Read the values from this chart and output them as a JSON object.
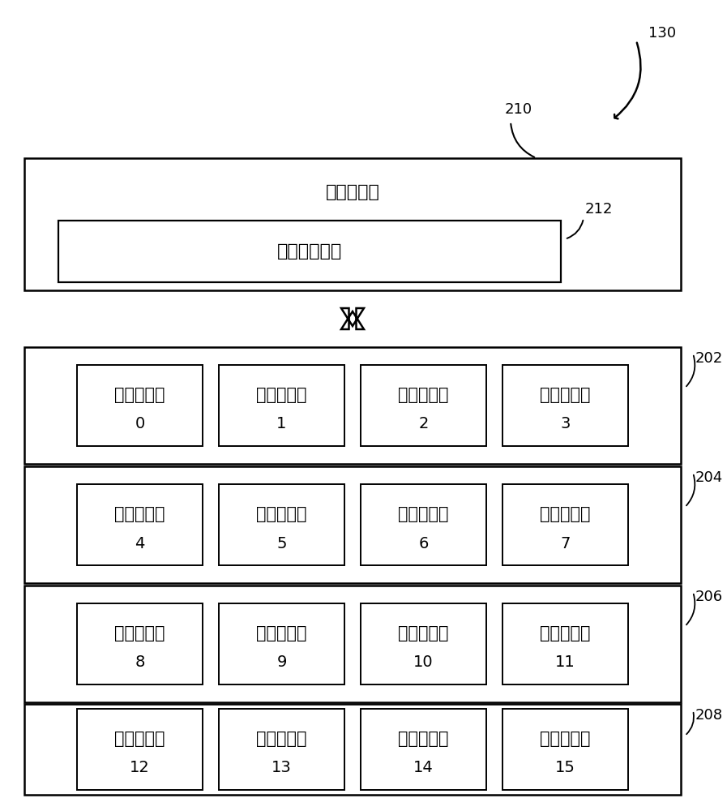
{
  "bg_color": "#ffffff",
  "lc": "#000000",
  "mem_core_text": "存储单元核",
  "shared_mem_text": "共享存储单元",
  "cpu_core_text": "处理单元核",
  "cpu_core_numbers": [
    [
      "0",
      "1",
      "2",
      "3"
    ],
    [
      "4",
      "5",
      "6",
      "7"
    ],
    [
      "8",
      "9",
      "10",
      "11"
    ],
    [
      "12",
      "13",
      "14",
      "15"
    ]
  ],
  "group_labels": [
    "202",
    "204",
    "206",
    "208"
  ],
  "label_130": "130",
  "label_210": "210",
  "label_212": "212",
  "fs_cn": 16,
  "fs_num": 14,
  "fs_tag": 13
}
